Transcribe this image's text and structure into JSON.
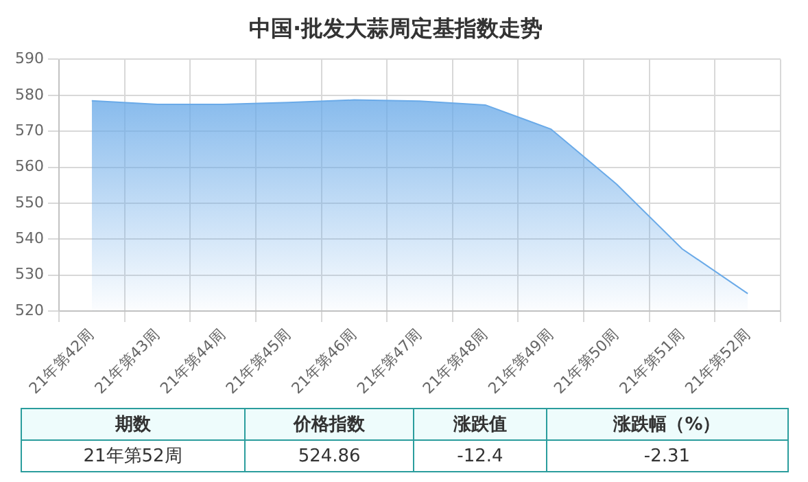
{
  "chart_data": {
    "type": "area",
    "title": "中国·批发大蒜周定基指数走势",
    "categories": [
      "21年第42周",
      "21年第43周",
      "21年第44周",
      "21年第45周",
      "21年第46周",
      "21年第47周",
      "21年第48周",
      "21年第49周",
      "21年第50周",
      "21年第51周",
      "21年第52周"
    ],
    "series": [
      {
        "color": "#6aaae8",
        "values": [
          578.5,
          577.5,
          577.5,
          578,
          578.7,
          578.4,
          577.3,
          570.6,
          555.3,
          537.3,
          524.86
        ]
      }
    ],
    "ylim": [
      520,
      590
    ],
    "yticks": [
      520,
      530,
      540,
      550,
      560,
      570,
      580,
      590
    ],
    "grid": true,
    "annotations": [
      "期数",
      "价格指数",
      "涨跌值",
      "涨跌幅（%）",
      "21年第52周",
      "524.86",
      "-12.4",
      "-2.31"
    ]
  }
}
